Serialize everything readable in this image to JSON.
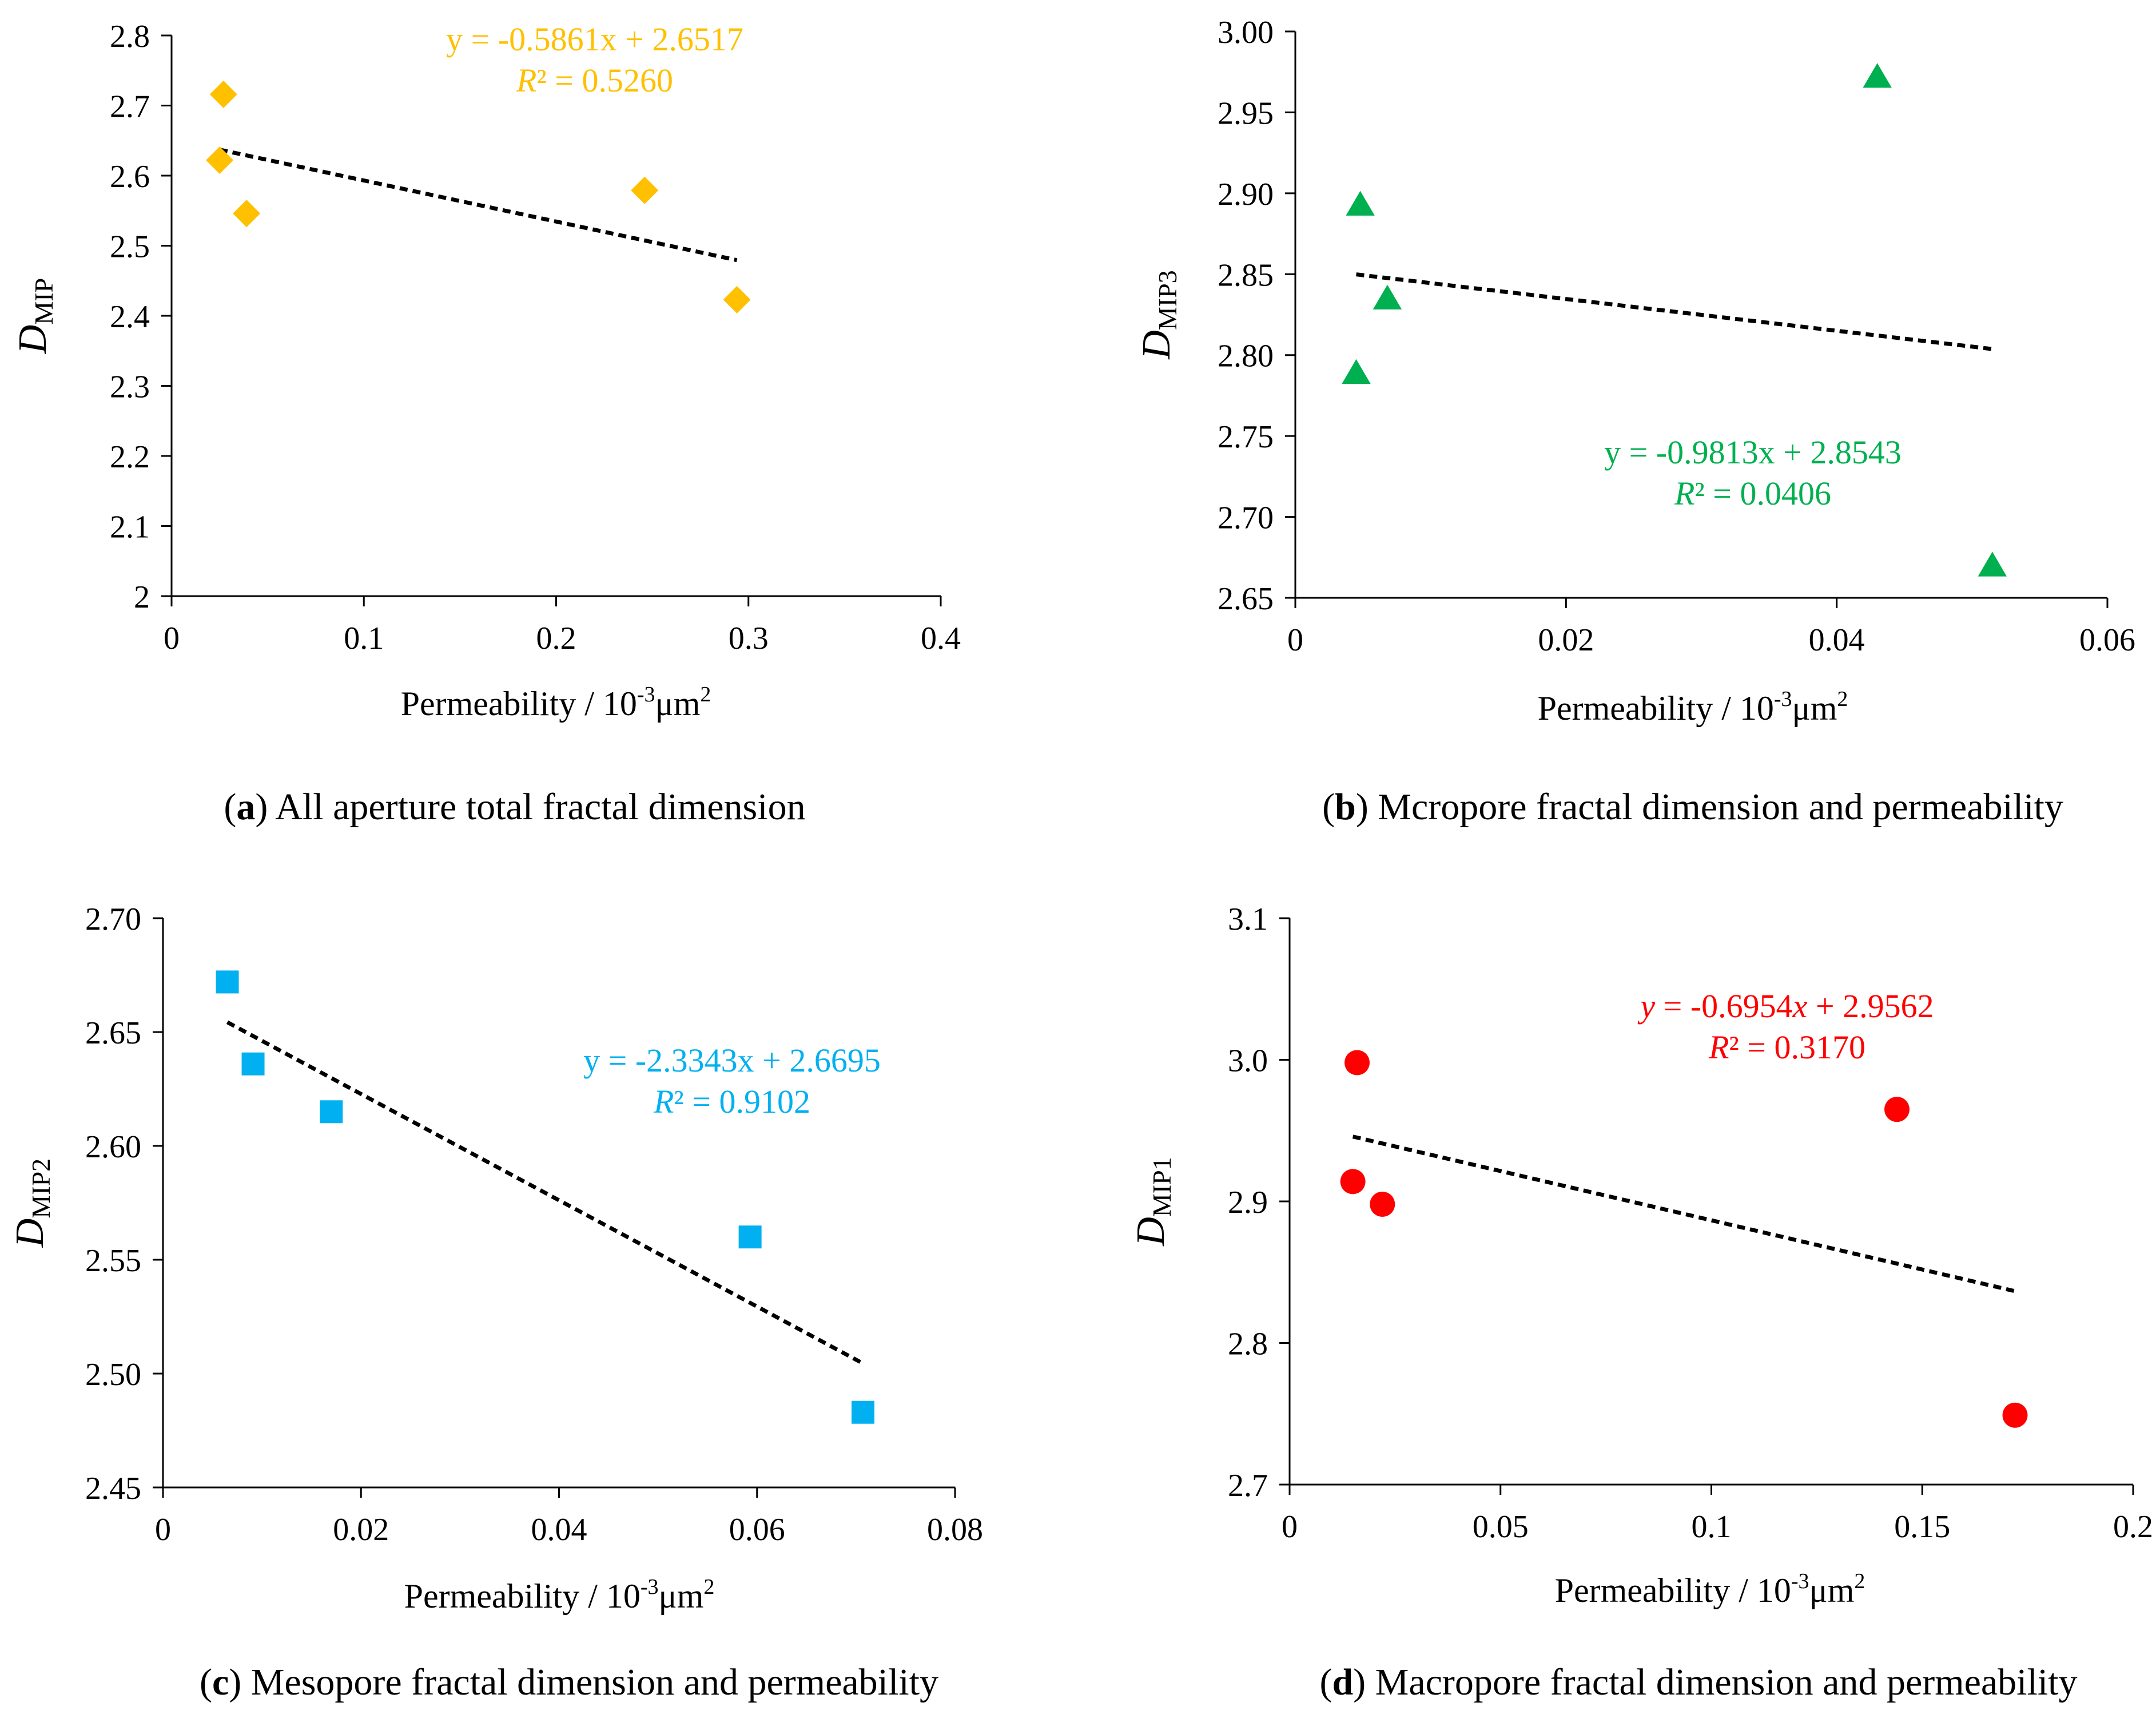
{
  "chart_data": [
    {
      "panel": "a",
      "type": "scatter",
      "caption_tag": "(a)",
      "caption": "All aperture total fractal dimension",
      "ylabel_main": "D",
      "ylabel_sub": "MIP",
      "xlabel_pre": "Permeability / 10",
      "xlabel_sup": "-3",
      "xlabel_post": "μm",
      "xlabel_sup2": "2",
      "xlim": [
        0,
        0.4
      ],
      "ylim": [
        2.0,
        2.8
      ],
      "xticks": [
        "0",
        "0.1",
        "0.2",
        "0.3",
        "0.4"
      ],
      "yticks": [
        "2",
        "2.1",
        "2.2",
        "2.3",
        "2.4",
        "2.5",
        "2.6",
        "2.7",
        "2.8"
      ],
      "marker": "diamond",
      "color": "#FFC000",
      "points": [
        [
          0.027,
          2.716
        ],
        [
          0.025,
          2.622
        ],
        [
          0.039,
          2.546
        ],
        [
          0.246,
          2.579
        ],
        [
          0.294,
          2.423
        ]
      ],
      "trend": {
        "slope": -0.5861,
        "intercept": 2.6517,
        "x_range": [
          0.025,
          0.294
        ]
      },
      "equation": "y = -0.5861x + 2.6517",
      "r2_label": "R",
      "r2_value": "² = 0.5260"
    },
    {
      "panel": "b",
      "type": "scatter",
      "caption_tag": "(b)",
      "caption": "Mcropore fractal dimension and permeability",
      "ylabel_main": "D",
      "ylabel_sub": "MIP3",
      "xlabel_pre": "Permeability / 10",
      "xlabel_sup": "-3",
      "xlabel_post": "μm",
      "xlabel_sup2": "2",
      "xlim": [
        0,
        0.06
      ],
      "ylim": [
        2.65,
        3.0
      ],
      "xticks": [
        "0",
        "0.02",
        "0.04",
        "0.06"
      ],
      "yticks": [
        "2.65",
        "2.70",
        "2.75",
        "2.80",
        "2.85",
        "2.90",
        "2.95",
        "3.00"
      ],
      "marker": "triangle",
      "color": "#00B050",
      "points": [
        [
          0.0048,
          2.893
        ],
        [
          0.0068,
          2.835
        ],
        [
          0.0045,
          2.789
        ],
        [
          0.043,
          2.972
        ],
        [
          0.0515,
          2.67
        ]
      ],
      "trend": {
        "slope": -0.9813,
        "intercept": 2.8543,
        "x_range": [
          0.0045,
          0.0515
        ]
      },
      "equation": "y = -0.9813x + 2.8543",
      "r2_label": "R",
      "r2_value": "² = 0.0406"
    },
    {
      "panel": "c",
      "type": "scatter",
      "caption_tag": "(c)",
      "caption": "Mesopore fractal dimension and permeability",
      "ylabel_main": "D",
      "ylabel_sub": "MIP2",
      "xlabel_pre": "Permeability / 10",
      "xlabel_sup": "-3",
      "xlabel_post": "μm",
      "xlabel_sup2": "2",
      "xlim": [
        0,
        0.08
      ],
      "ylim": [
        2.45,
        2.7
      ],
      "xticks": [
        "0",
        "0.02",
        "0.04",
        "0.06",
        "0.08"
      ],
      "yticks": [
        "2.45",
        "2.50",
        "2.55",
        "2.60",
        "2.65",
        "2.70"
      ],
      "marker": "square",
      "color": "#00B0F0",
      "points": [
        [
          0.0065,
          2.672
        ],
        [
          0.0091,
          2.636
        ],
        [
          0.017,
          2.615
        ],
        [
          0.0593,
          2.56
        ],
        [
          0.0707,
          2.483
        ]
      ],
      "trend": {
        "slope": -2.3343,
        "intercept": 2.6695,
        "x_range": [
          0.0065,
          0.0707
        ]
      },
      "equation": "y = -2.3343x + 2.6695",
      "r2_label": "R",
      "r2_value": "² = 0.9102"
    },
    {
      "panel": "d",
      "type": "scatter",
      "caption_tag": "(d)",
      "caption": "Macropore fractal dimension and permeability",
      "ylabel_main": "D",
      "ylabel_sub": "MIP1",
      "xlabel_pre": "Permeability / 10",
      "xlabel_sup": "-3",
      "xlabel_post": "μm",
      "xlabel_sup2": "2",
      "xlim": [
        0,
        0.2
      ],
      "ylim": [
        2.7,
        3.1
      ],
      "xticks": [
        "0",
        "0.05",
        "0.1",
        "0.15",
        "0.2"
      ],
      "yticks": [
        "2.7",
        "2.8",
        "2.9",
        "3.0",
        "3.1"
      ],
      "marker": "circle",
      "color": "#FF0000",
      "points": [
        [
          0.016,
          2.998
        ],
        [
          0.015,
          2.914
        ],
        [
          0.022,
          2.898
        ],
        [
          0.144,
          2.965
        ],
        [
          0.172,
          2.749
        ]
      ],
      "trend": {
        "slope": -0.6954,
        "intercept": 2.9562,
        "x_range": [
          0.015,
          0.172
        ]
      },
      "equation_parts": [
        "y",
        " = -0.6954",
        "x",
        " + 2.9562"
      ],
      "r2_label": "R",
      "r2_value": "² = 0.3170"
    }
  ]
}
